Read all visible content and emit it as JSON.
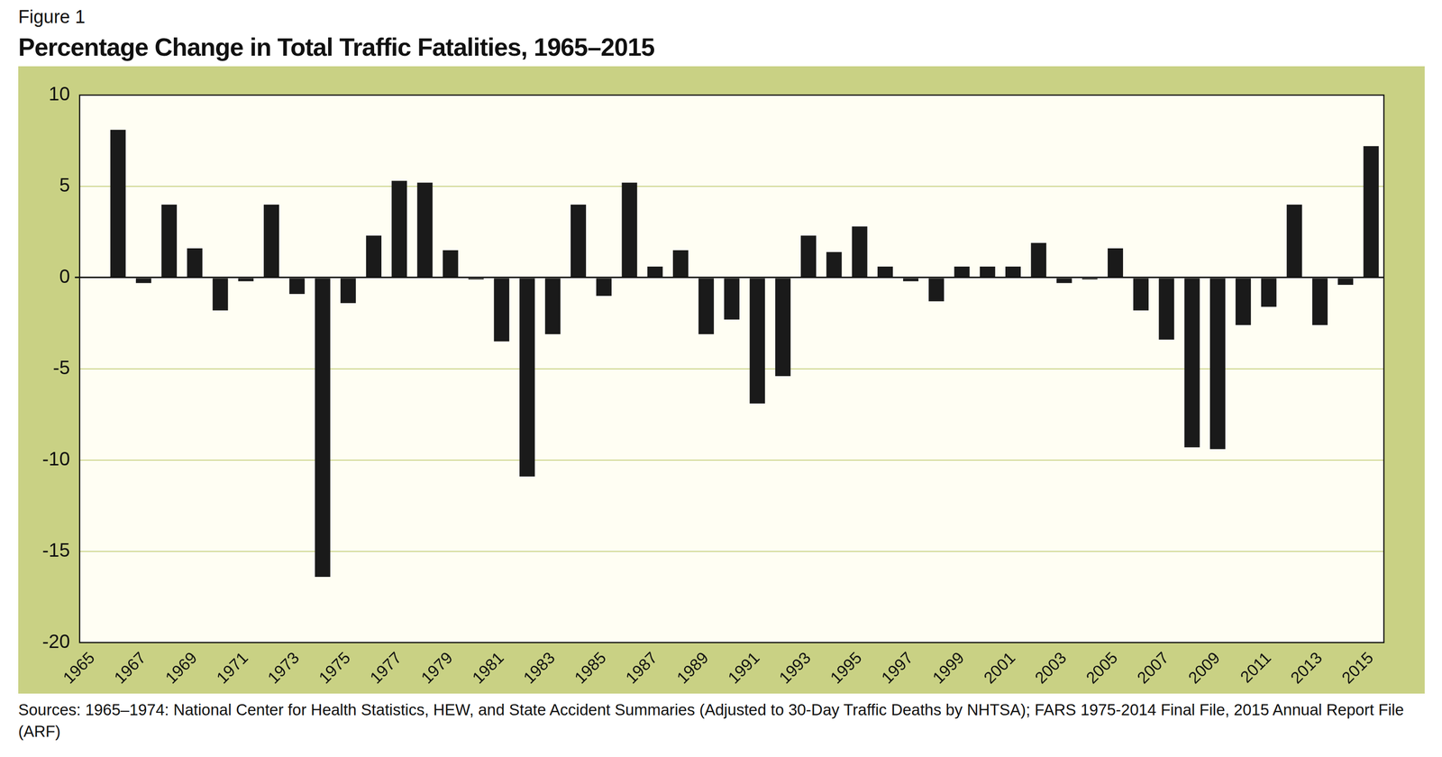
{
  "chart_data": {
    "type": "bar",
    "subtitle": "Figure 1",
    "title": "Percentage Change in Total Traffic Fatalities, 1965–2015",
    "source": "Sources: 1965–1974: National Center for Health Statistics, HEW, and State Accident Summaries (Adjusted to 30-Day Traffic Deaths by NHTSA); FARS 1975-2014 Final File, 2015 Annual Report File (ARF)",
    "categories": [
      "1965",
      null,
      "1967",
      null,
      "1969",
      null,
      "1971",
      null,
      "1973",
      null,
      "1975",
      null,
      "1977",
      null,
      "1979",
      null,
      "1981",
      null,
      "1983",
      null,
      "1985",
      null,
      "1987",
      null,
      "1989",
      null,
      "1991",
      null,
      "1993",
      null,
      "1995",
      null,
      "1997",
      null,
      "1999",
      null,
      "2001",
      null,
      "2003",
      null,
      "2005",
      null,
      "2007",
      null,
      "2009",
      null,
      "2011",
      null,
      "2013",
      null,
      "2015"
    ],
    "values": [
      null,
      8.1,
      -0.3,
      4.0,
      1.6,
      -1.8,
      -0.2,
      4.0,
      -0.9,
      -16.4,
      -1.4,
      2.3,
      5.3,
      5.2,
      1.5,
      -0.1,
      -3.5,
      -10.9,
      -3.1,
      4.0,
      -1.0,
      5.2,
      0.6,
      1.5,
      -3.1,
      -2.3,
      -6.9,
      -5.4,
      2.3,
      1.4,
      2.8,
      0.6,
      -0.2,
      -1.3,
      0.6,
      0.6,
      0.6,
      1.9,
      -0.3,
      -0.1,
      1.6,
      -1.8,
      -3.4,
      -9.3,
      -9.4,
      -2.6,
      -1.6,
      4.0,
      -2.6,
      -0.4,
      7.2
    ],
    "color": "#1a1a1a",
    "ylim": [
      -20,
      10
    ],
    "yticks": [
      -20,
      -15,
      -10,
      -5,
      0,
      5,
      10
    ],
    "grid": true
  }
}
